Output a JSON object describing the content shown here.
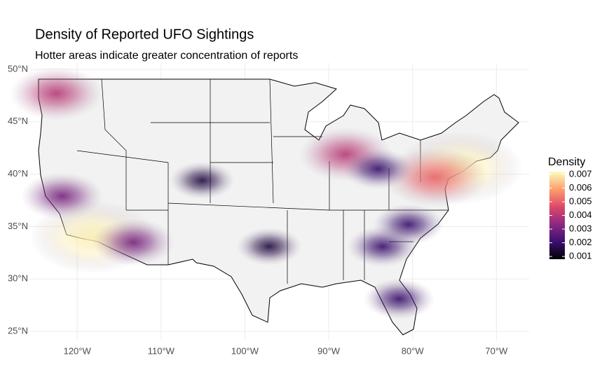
{
  "chart_data": {
    "type": "density-map",
    "title": "Density of Reported UFO Sightings",
    "subtitle": "Hotter areas indicate greater concentration of reports",
    "xlim": [
      -125.7,
      -66.1
    ],
    "ylim": [
      24.2,
      50.6
    ],
    "xticks": [
      {
        "value": -120,
        "label": "120°W"
      },
      {
        "value": -110,
        "label": "110°W"
      },
      {
        "value": -100,
        "label": "100°W"
      },
      {
        "value": -90,
        "label": "90°W"
      },
      {
        "value": -80,
        "label": "80°W"
      },
      {
        "value": -70,
        "label": "70°W"
      }
    ],
    "yticks": [
      {
        "value": 25,
        "label": "25°N"
      },
      {
        "value": 30,
        "label": "30°N"
      },
      {
        "value": 35,
        "label": "35°N"
      },
      {
        "value": 40,
        "label": "40°N"
      },
      {
        "value": 45,
        "label": "45°N"
      },
      {
        "value": 50,
        "label": "50°N"
      }
    ],
    "grid": true,
    "x": [
      -122.5,
      -121.8,
      -118.1,
      -113.3,
      -88.0,
      -74.4,
      -77.3,
      -81.6,
      -84.1,
      -105.1,
      -97.1,
      -83.6,
      -80.5
    ],
    "y": [
      47.7,
      37.9,
      34.0,
      33.5,
      41.9,
      40.6,
      39.7,
      28.1,
      40.5,
      39.4,
      33.1,
      33.1,
      35.2
    ],
    "values": [
      0.004,
      0.003,
      0.007,
      0.003,
      0.004,
      0.007,
      0.005,
      0.002,
      0.002,
      0.0015,
      0.0015,
      0.002,
      0.002
    ],
    "legend_title": "Density",
    "legend_lim": [
      0.0008,
      0.0072
    ],
    "legend_ticks": [
      0.001,
      0.002,
      0.003,
      0.004,
      0.005,
      0.006,
      0.007
    ],
    "colors": [
      "#000004",
      "#3b0f70",
      "#8c2981",
      "#de4968",
      "#fe9f6d",
      "#fcfdbf"
    ],
    "legend_position": "right"
  }
}
